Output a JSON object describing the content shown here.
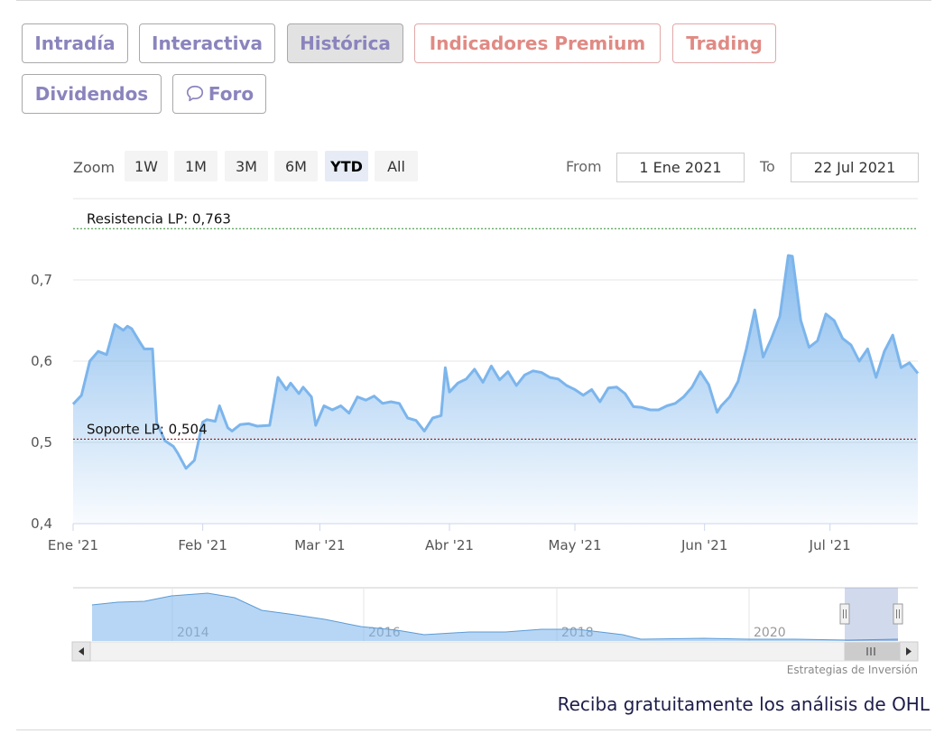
{
  "tabs": [
    {
      "label": "Intradía"
    },
    {
      "label": "Interactiva"
    },
    {
      "label": "Histórica"
    },
    {
      "label": "Indicadores Premium"
    },
    {
      "label": "Trading"
    },
    {
      "label": "Dividendos"
    },
    {
      "label": "Foro"
    }
  ],
  "active_tab": "Histórica",
  "zoom": {
    "label": "Zoom",
    "buttons": [
      "1W",
      "1M",
      "3M",
      "6M",
      "YTD",
      "All"
    ],
    "active": "YTD"
  },
  "range": {
    "from_label": "From",
    "from_value": "1 Ene 2021",
    "to_label": "To",
    "to_value": "22 Jul 2021"
  },
  "colors": {
    "line": "#7cb5ec",
    "resistance": "#2e8b2e",
    "support": "#8b0000",
    "tab_text": "#8a84bd",
    "premium_text": "#e08a84"
  },
  "chart_data": {
    "type": "area",
    "xlabel": "",
    "ylabel": "",
    "x_range": [
      "2021-01-01",
      "2021-07-22"
    ],
    "ylim": [
      0.4,
      0.78
    ],
    "yticks": [
      0.4,
      0.5,
      0.6,
      0.7
    ],
    "ytick_labels": [
      "0,4",
      "0,5",
      "0,6",
      "0,7"
    ],
    "xticks": [
      {
        "date": "2021-01-01",
        "label": "Ene '21"
      },
      {
        "date": "2021-02-01",
        "label": "Feb '21"
      },
      {
        "date": "2021-03-01",
        "label": "Mar '21"
      },
      {
        "date": "2021-04-01",
        "label": "Abr '21"
      },
      {
        "date": "2021-05-01",
        "label": "May '21"
      },
      {
        "date": "2021-06-01",
        "label": "Jun '21"
      },
      {
        "date": "2021-07-01",
        "label": "Jul '21"
      }
    ],
    "grid": true,
    "plot_lines": [
      {
        "label": "Resistencia LP: 0,763",
        "value": 0.763
      },
      {
        "label": "Soporte LP: 0,504",
        "value": 0.504
      }
    ],
    "series": [
      {
        "x": [
          "2021-01-01",
          "2021-01-03",
          "2021-01-05",
          "2021-01-07",
          "2021-01-09",
          "2021-01-11",
          "2021-01-13",
          "2021-01-14",
          "2021-01-15",
          "2021-01-17",
          "2021-01-18",
          "2021-01-20",
          "2021-01-21",
          "2021-01-23",
          "2021-01-25",
          "2021-01-26",
          "2021-01-28",
          "2021-01-30",
          "2021-02-01",
          "2021-02-02",
          "2021-02-04",
          "2021-02-05",
          "2021-02-07",
          "2021-02-08",
          "2021-02-10",
          "2021-02-12",
          "2021-02-14",
          "2021-02-17",
          "2021-02-19",
          "2021-02-21",
          "2021-02-22",
          "2021-02-24",
          "2021-02-25",
          "2021-02-27",
          "2021-02-28",
          "2021-03-02",
          "2021-03-04",
          "2021-03-06",
          "2021-03-08",
          "2021-03-10",
          "2021-03-12",
          "2021-03-14",
          "2021-03-16",
          "2021-03-18",
          "2021-03-20",
          "2021-03-22",
          "2021-03-24",
          "2021-03-26",
          "2021-03-28",
          "2021-03-30",
          "2021-03-31",
          "2021-04-01",
          "2021-04-03",
          "2021-04-05",
          "2021-04-07",
          "2021-04-09",
          "2021-04-11",
          "2021-04-13",
          "2021-04-15",
          "2021-04-17",
          "2021-04-19",
          "2021-04-21",
          "2021-04-23",
          "2021-04-25",
          "2021-04-27",
          "2021-04-29",
          "2021-05-01",
          "2021-05-03",
          "2021-05-05",
          "2021-05-07",
          "2021-05-09",
          "2021-05-11",
          "2021-05-13",
          "2021-05-15",
          "2021-05-17",
          "2021-05-19",
          "2021-05-21",
          "2021-05-23",
          "2021-05-25",
          "2021-05-27",
          "2021-05-29",
          "2021-05-31",
          "2021-06-02",
          "2021-06-04",
          "2021-06-05",
          "2021-06-07",
          "2021-06-09",
          "2021-06-11",
          "2021-06-13",
          "2021-06-15",
          "2021-06-17",
          "2021-06-19",
          "2021-06-21",
          "2021-06-22",
          "2021-06-24",
          "2021-06-26",
          "2021-06-28",
          "2021-06-30",
          "2021-07-02",
          "2021-07-04",
          "2021-07-06",
          "2021-07-08",
          "2021-07-10",
          "2021-07-12",
          "2021-07-14",
          "2021-07-16",
          "2021-07-18",
          "2021-07-20",
          "2021-07-22"
        ],
        "y": [
          0.547,
          0.558,
          0.6,
          0.612,
          0.608,
          0.645,
          0.638,
          0.643,
          0.64,
          0.623,
          0.615,
          0.615,
          0.524,
          0.502,
          0.495,
          0.487,
          0.468,
          0.478,
          0.525,
          0.528,
          0.526,
          0.545,
          0.518,
          0.514,
          0.522,
          0.523,
          0.52,
          0.521,
          0.58,
          0.565,
          0.573,
          0.56,
          0.568,
          0.556,
          0.521,
          0.545,
          0.54,
          0.545,
          0.536,
          0.556,
          0.552,
          0.557,
          0.548,
          0.55,
          0.548,
          0.53,
          0.527,
          0.514,
          0.53,
          0.533,
          0.592,
          0.562,
          0.573,
          0.578,
          0.59,
          0.574,
          0.594,
          0.577,
          0.587,
          0.57,
          0.583,
          0.588,
          0.586,
          0.58,
          0.578,
          0.57,
          0.565,
          0.558,
          0.565,
          0.55,
          0.567,
          0.568,
          0.56,
          0.544,
          0.543,
          0.54,
          0.54,
          0.545,
          0.548,
          0.556,
          0.568,
          0.587,
          0.571,
          0.537,
          0.545,
          0.556,
          0.575,
          0.615,
          0.663,
          0.605,
          0.628,
          0.655,
          0.73,
          0.729,
          0.65,
          0.617,
          0.625,
          0.658,
          0.65,
          0.628,
          0.62,
          0.6,
          0.615,
          0.58,
          0.612,
          0.632,
          0.592,
          0.598,
          0.585
        ]
      }
    ],
    "navigator": {
      "years": [
        "2014",
        "2016",
        "2018",
        "2020"
      ]
    }
  },
  "credit": "Estrategias de Inversión",
  "cta": "Reciba gratuitamente los análisis de OHL"
}
